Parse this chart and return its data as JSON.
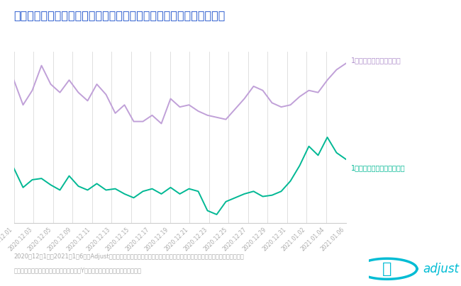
{
  "title": "日本における年末シーズンのヘルス＆フィットネスアプリの利用状況",
  "title_color": "#2255cc",
  "bg_color": "#ffffff",
  "plot_bg_color": "#ffffff",
  "grid_color": "#e0e0e0",
  "sessions_color": "#c0a0d8",
  "installs_color": "#00b894",
  "sessions_label": "1日あたりのセッション数",
  "installs_label": "1日あたりのインストール数",
  "footnote_line1": "2020年12月1日～2021年1月6日にAdjustプラットフォームで計測されたヘルス＆フィットネスアプリのデータに基づきます。",
  "footnote_line2": "インストール数とセッション数は、異なるYスケールでプロットされています。",
  "x_labels": [
    "2020.12.01",
    "2020.12.03",
    "2020.12.05",
    "2020.12.09",
    "2020.12.11",
    "2020.12.13",
    "2020.12.15",
    "2020.12.17",
    "2020.12.19",
    "2020.12.21",
    "2020.12.23",
    "2020.12.25",
    "2020.12.27",
    "2020.12.29",
    "2020.12.31",
    "2021.01.02",
    "2021.01.04",
    "2021.01.06"
  ],
  "sessions_values": [
    100,
    88,
    95,
    107,
    98,
    94,
    100,
    94,
    90,
    98,
    93,
    84,
    88,
    80,
    80,
    83,
    79,
    91,
    87,
    88,
    85,
    83,
    82,
    81,
    86,
    91,
    97,
    95,
    89,
    87,
    88,
    92,
    95,
    94,
    100,
    105,
    108
  ],
  "installs_values": [
    78,
    63,
    69,
    70,
    65,
    61,
    72,
    64,
    61,
    66,
    61,
    62,
    58,
    55,
    60,
    62,
    58,
    63,
    58,
    62,
    60,
    45,
    42,
    52,
    55,
    58,
    60,
    56,
    57,
    60,
    68,
    80,
    95,
    88,
    102,
    90,
    85
  ],
  "footnote_color": "#aaaaaa",
  "adjust_color": "#00bcd4",
  "label_sessions_color": "#b090cc",
  "label_installs_color": "#00b894"
}
